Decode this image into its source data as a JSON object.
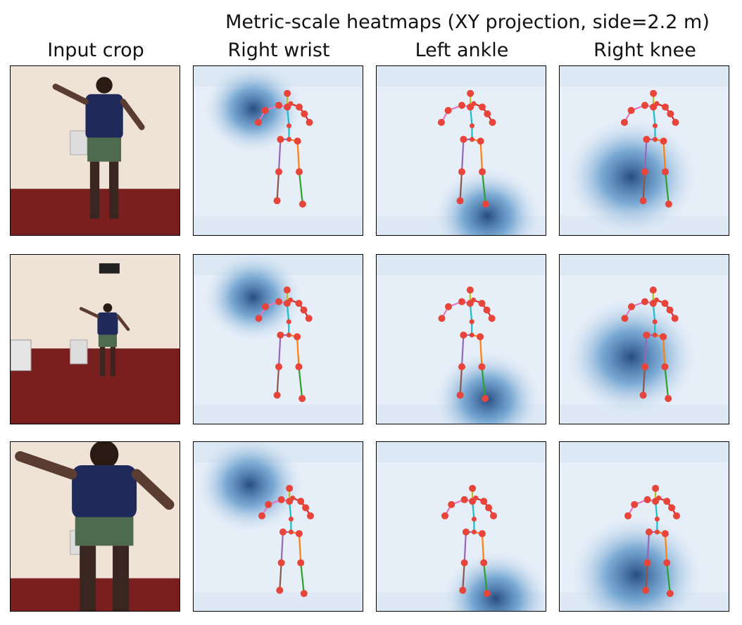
{
  "figure": {
    "suptitle": "Metric-scale heatmaps (XY projection, side=2.2 m)",
    "column_titles": [
      "Input crop",
      "Right wrist",
      "Left ankle",
      "Right knee"
    ]
  },
  "colors": {
    "heat_low": "#e6eef8",
    "heat_high": "#08306b",
    "joint": "#e8443a",
    "limb_right_arm": "#e377c2",
    "limb_left_arm": "#d62728",
    "limb_right_leg": "#9467bd",
    "limb_left_leg": "#ff7f0e",
    "limb_shin_right": "#8c564b",
    "limb_shin_left": "#2ca02c",
    "limb_spine": "#17becf",
    "limb_head": "#bcbd22",
    "photo_wall": "#efe2d6",
    "photo_floor": "#7a1f1f",
    "shirt": "#1f2a5a",
    "shorts": "#4f6b4f"
  },
  "rows": [
    {
      "photo": "person-standing-arms-raised",
      "heatmaps": [
        {
          "joint": "Right wrist",
          "peak": [
            0.35,
            0.25
          ],
          "spread": 0.12
        },
        {
          "joint": "Left ankle",
          "peak": [
            0.65,
            0.88
          ],
          "spread": 0.13
        },
        {
          "joint": "Right knee",
          "peak": [
            0.42,
            0.65
          ],
          "spread": 0.16
        }
      ]
    },
    {
      "photo": "person-far-in-room",
      "heatmaps": [
        {
          "joint": "Right wrist",
          "peak": [
            0.35,
            0.25
          ],
          "spread": 0.12
        },
        {
          "joint": "Left ankle",
          "peak": [
            0.65,
            0.85
          ],
          "spread": 0.13
        },
        {
          "joint": "Right knee",
          "peak": [
            0.42,
            0.6
          ],
          "spread": 0.16
        }
      ]
    },
    {
      "photo": "person-close-arms-out",
      "heatmaps": [
        {
          "joint": "Right wrist",
          "peak": [
            0.33,
            0.25
          ],
          "spread": 0.13
        },
        {
          "joint": "Left ankle",
          "peak": [
            0.7,
            0.92
          ],
          "spread": 0.13
        },
        {
          "joint": "Right knee",
          "peak": [
            0.45,
            0.78
          ],
          "spread": 0.16
        }
      ]
    }
  ]
}
